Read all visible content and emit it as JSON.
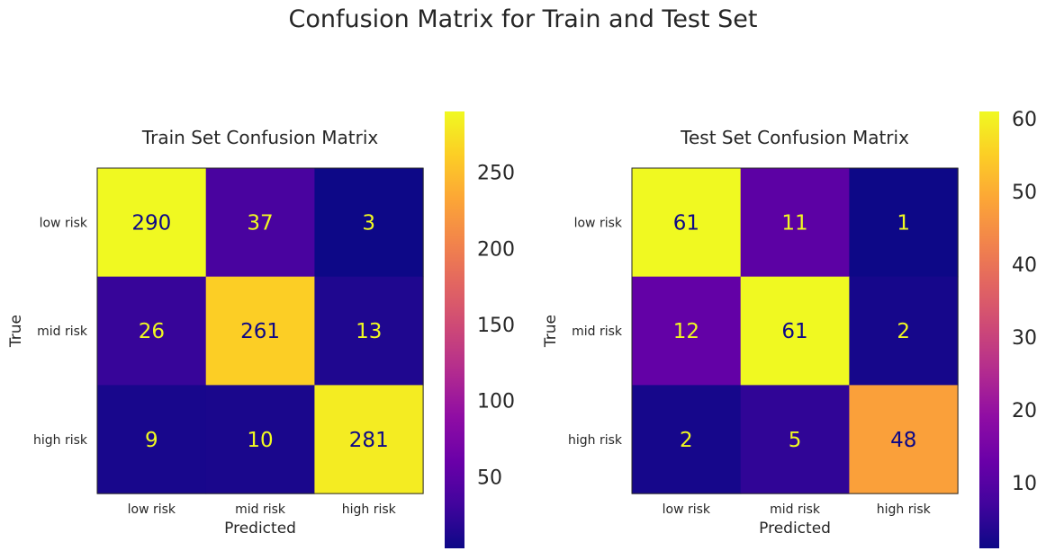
{
  "figure": {
    "suptitle": "Confusion Matrix for Train and Test Set"
  },
  "chart_data": [
    {
      "type": "heatmap",
      "title": "Train Set Confusion Matrix",
      "xlabel": "Predicted",
      "ylabel": "True",
      "x_categories": [
        "low risk",
        "mid risk",
        "high risk"
      ],
      "y_categories": [
        "low risk",
        "mid risk",
        "high risk"
      ],
      "matrix": [
        [
          290,
          37,
          3
        ],
        [
          26,
          261,
          13
        ],
        [
          9,
          10,
          281
        ]
      ],
      "colormap": "plasma",
      "vmin": 3,
      "vmax": 290,
      "colorbar_ticks": [
        50,
        100,
        150,
        200,
        250
      ],
      "grid": false
    },
    {
      "type": "heatmap",
      "title": "Test Set Confusion Matrix",
      "xlabel": "Predicted",
      "ylabel": "True",
      "x_categories": [
        "low risk",
        "mid risk",
        "high risk"
      ],
      "y_categories": [
        "low risk",
        "mid risk",
        "high risk"
      ],
      "matrix": [
        [
          61,
          11,
          1
        ],
        [
          12,
          61,
          2
        ],
        [
          2,
          5,
          48
        ]
      ],
      "colormap": "plasma",
      "vmin": 1,
      "vmax": 61,
      "colorbar_ticks": [
        10,
        20,
        30,
        40,
        50,
        60
      ],
      "grid": false
    }
  ]
}
